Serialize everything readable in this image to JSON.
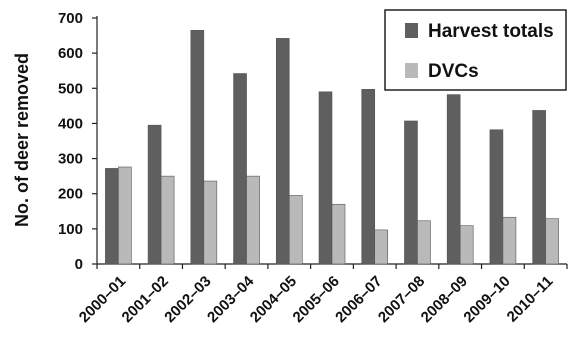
{
  "chart_data": {
    "type": "bar",
    "title": "",
    "ylabel": "No. of deer removed",
    "xlabel": "",
    "ylim": [
      0,
      700
    ],
    "yticks": [
      0,
      100,
      200,
      300,
      400,
      500,
      600,
      700
    ],
    "categories": [
      "2000–01",
      "2001–02",
      "2002–03",
      "2003–04",
      "2004–05",
      "2005–06",
      "2006–07",
      "2007–08",
      "2008–09",
      "2009–10",
      "2010–11"
    ],
    "series": [
      {
        "name": "Harvest totals",
        "color": "#5f5f5f",
        "values": [
          272,
          395,
          665,
          542,
          642,
          490,
          497,
          407,
          482,
          382,
          437
        ]
      },
      {
        "name": "DVCs",
        "color": "#b9b9b9",
        "values": [
          276,
          250,
          236,
          250,
          195,
          170,
          97,
          123,
          109,
          133,
          129
        ]
      }
    ],
    "grid": false,
    "legend_position": "top-right"
  }
}
